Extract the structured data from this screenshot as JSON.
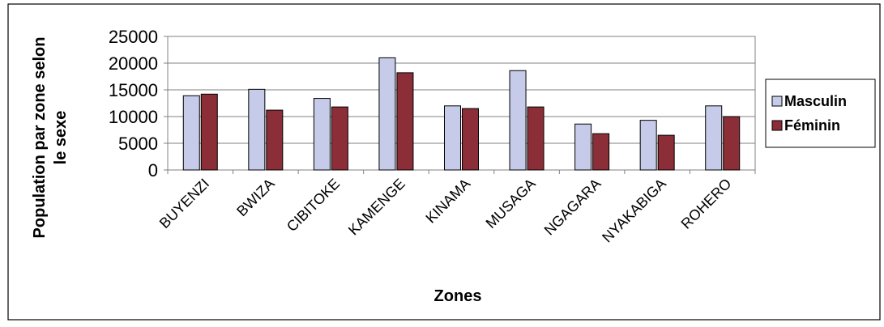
{
  "chart_data": {
    "type": "bar",
    "title": "",
    "xlabel": "Zones",
    "ylabel_line1": "Population par zone selon",
    "ylabel_line2": "le sexe",
    "ylim": [
      0,
      25000
    ],
    "yticks": [
      0,
      5000,
      10000,
      15000,
      20000,
      25000
    ],
    "grid": true,
    "legend_position": "right",
    "categories": [
      "BUYENZI",
      "BWIZA",
      "CIBITOKE",
      "KAMENGE",
      "KINAMA",
      "MUSAGA",
      "NGAGARA",
      "NYAKABIGA",
      "ROHERO"
    ],
    "series": [
      {
        "name": "Masculin",
        "color": "#c5cbe8",
        "values": [
          13900,
          15100,
          13400,
          21000,
          12000,
          18600,
          8600,
          9300,
          12000
        ]
      },
      {
        "name": "Féminin",
        "color": "#8b2e38",
        "values": [
          14200,
          11200,
          11800,
          18200,
          11500,
          11800,
          6800,
          6500,
          10000
        ]
      }
    ]
  }
}
